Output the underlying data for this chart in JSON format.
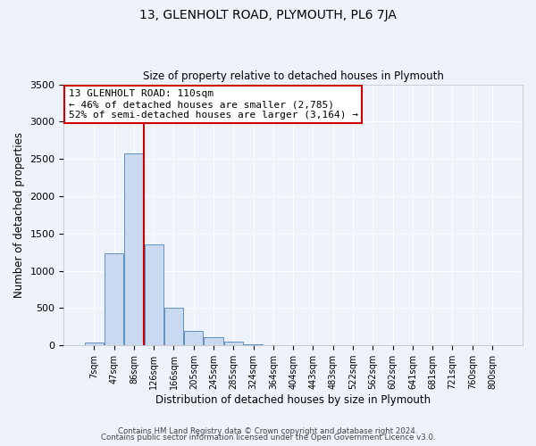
{
  "title_line1": "13, GLENHOLT ROAD, PLYMOUTH, PL6 7JA",
  "title_line2": "Size of property relative to detached houses in Plymouth",
  "xlabel": "Distribution of detached houses by size in Plymouth",
  "ylabel": "Number of detached properties",
  "bar_labels": [
    "7sqm",
    "47sqm",
    "86sqm",
    "126sqm",
    "166sqm",
    "205sqm",
    "245sqm",
    "285sqm",
    "324sqm",
    "364sqm",
    "404sqm",
    "443sqm",
    "483sqm",
    "522sqm",
    "562sqm",
    "602sqm",
    "641sqm",
    "681sqm",
    "721sqm",
    "760sqm",
    "800sqm"
  ],
  "bar_values": [
    40,
    1230,
    2570,
    1350,
    500,
    195,
    110,
    45,
    20,
    5,
    3,
    2,
    2,
    1,
    1,
    1,
    1,
    1,
    1,
    1,
    1
  ],
  "bar_color": "#c9d9f0",
  "bar_edge_color": "#6090c0",
  "ylim": [
    0,
    3500
  ],
  "yticks": [
    0,
    500,
    1000,
    1500,
    2000,
    2500,
    3000,
    3500
  ],
  "vline_color": "#cc0000",
  "annotation_title": "13 GLENHOLT ROAD: 110sqm",
  "annotation_line1": "← 46% of detached houses are smaller (2,785)",
  "annotation_line2": "52% of semi-detached houses are larger (3,164) →",
  "annotation_box_color": "#cc0000",
  "footer_line1": "Contains HM Land Registry data © Crown copyright and database right 2024.",
  "footer_line2": "Contains public sector information licensed under the Open Government Licence v3.0.",
  "background_color": "#eef2fa",
  "plot_bg_color": "#eef2fa",
  "grid_color": "#ffffff"
}
